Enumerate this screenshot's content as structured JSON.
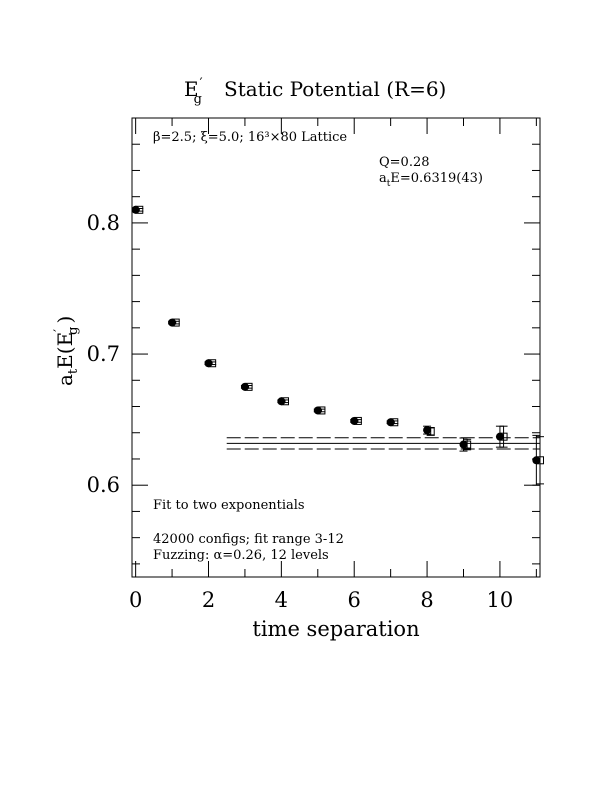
{
  "chart_data": {
    "type": "scatter",
    "title": {
      "main": "E",
      "main_sub": "g",
      "main_prime": "′",
      "rest": "Static Potential (R=6)"
    },
    "xlabel": "time separation",
    "ylabel": {
      "a": "a",
      "a_sub": "t",
      "e": "E(E",
      "prime": "′",
      "e_sub": "g",
      "close": ")"
    },
    "xlim": [
      -0.1,
      11.1
    ],
    "ylim": [
      0.53,
      0.88
    ],
    "x_ticks": [
      0,
      2,
      4,
      6,
      8,
      10
    ],
    "x_tick_labels": [
      "0",
      "2",
      "4",
      "6",
      "8",
      "10"
    ],
    "y_ticks": [
      0.6,
      0.7,
      0.8
    ],
    "y_tick_labels": [
      "0.6",
      "0.7",
      "0.8"
    ],
    "grid": false,
    "annotations": {
      "lattice": "β=2.5; ξ=5.0; 16³×80 Lattice",
      "q": "Q=0.28",
      "ate_a": "a",
      "ate_sub": "t",
      "ate_rest": "E=0.6319(43)",
      "fit": "Fit to two exponentials",
      "configs": "42000 configs; fit range 3-12",
      "fuzzing": "Fuzzing: α=0.26, 12 levels"
    },
    "series": [
      {
        "marker": "filled-circle",
        "x": [
          0,
          1,
          2,
          3,
          4,
          5,
          6,
          7,
          8,
          9,
          10,
          11
        ],
        "y": [
          0.81,
          0.724,
          0.693,
          0.675,
          0.664,
          0.657,
          0.649,
          0.648,
          0.642,
          0.631,
          0.637,
          0.619
        ],
        "yerr": [
          0.001,
          0.001,
          0.001,
          0.001,
          0.001,
          0.001,
          0.001,
          0.001,
          0.003,
          0.005,
          0.008,
          0.019
        ]
      },
      {
        "marker": "open-square",
        "x": [
          0.1,
          1.1,
          2.1,
          3.1,
          4.1,
          5.1,
          6.1,
          7.1,
          8.1,
          9.1,
          10.1,
          11.1
        ],
        "y": [
          0.81,
          0.724,
          0.693,
          0.675,
          0.664,
          0.657,
          0.649,
          0.648,
          0.641,
          0.631,
          0.637,
          0.619
        ],
        "yerr": [
          0.001,
          0.001,
          0.001,
          0.001,
          0.001,
          0.001,
          0.001,
          0.001,
          0.003,
          0.004,
          0.008,
          0.018
        ]
      }
    ],
    "fit": {
      "value": 0.6319,
      "error": 0.0043,
      "x_range": [
        2.5,
        11.1
      ]
    }
  }
}
